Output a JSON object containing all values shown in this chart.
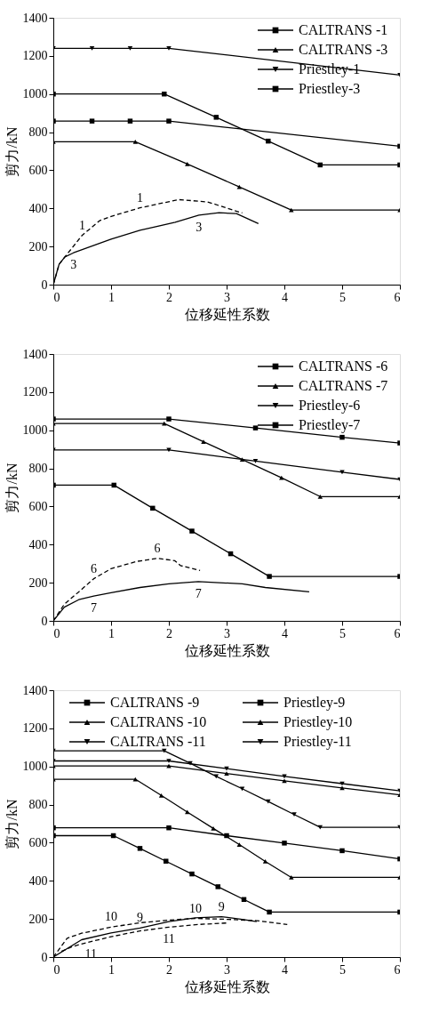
{
  "chart_data": [
    {
      "type": "line",
      "xlabel": "位移延性系数",
      "ylabel": "剪力/kN",
      "xlim": [
        0,
        6
      ],
      "xticks": [
        0,
        1,
        2,
        3,
        4,
        5,
        6
      ],
      "ylim": [
        0,
        1400
      ],
      "yticks": [
        0,
        200,
        400,
        600,
        800,
        1000,
        1200,
        1400
      ],
      "legend": "top right",
      "series": [
        {
          "name": "CALTRANS -1",
          "color": "#000000",
          "marker": "square",
          "line_style": "solid",
          "x": [
            0,
            1.92,
            2.82,
            3.72,
            4.62,
            6
          ],
          "values": [
            1000,
            1000,
            878,
            753,
            628,
            628
          ]
        },
        {
          "name": "CALTRANS -3",
          "color": "#000000",
          "marker": "triangle",
          "line_style": "solid",
          "x": [
            0,
            1.42,
            2.32,
            3.22,
            4.12,
            6
          ],
          "values": [
            750,
            750,
            633,
            513,
            391,
            391
          ]
        },
        {
          "name": "Priestley-1",
          "color": "#000000",
          "marker": "triangle-down",
          "line_style": "solid",
          "x": [
            0,
            0.67,
            1.33,
            2,
            6
          ],
          "values": [
            1240,
            1240,
            1240,
            1240,
            1100
          ]
        },
        {
          "name": "Priestley-3",
          "color": "#000000",
          "marker": "square",
          "line_style": "solid",
          "x": [
            0,
            0.67,
            1.33,
            2,
            6
          ],
          "values": [
            858,
            858,
            858,
            858,
            726
          ]
        },
        {
          "name": "1",
          "color": "#000000",
          "line_style": "dashed",
          "x": [
            0,
            0.1,
            0.2,
            0.5,
            0.8,
            1.0,
            1.5,
            2.17,
            2.67,
            3.27
          ],
          "values": [
            0,
            107,
            145,
            259,
            335,
            358,
            403,
            446,
            434,
            376
          ]
        },
        {
          "name": "3",
          "color": "#000000",
          "line_style": "solid",
          "x": [
            0,
            0.1,
            0.2,
            0.35,
            1.0,
            1.5,
            2.11,
            2.52,
            2.87,
            3.17,
            3.55
          ],
          "values": [
            0,
            107,
            145,
            167,
            239,
            285,
            327,
            365,
            377,
            373,
            320
          ]
        }
      ]
    },
    {
      "type": "line",
      "xlabel": "位移延性系数",
      "ylabel": "剪力/kN",
      "xlim": [
        0,
        6
      ],
      "xticks": [
        0,
        1,
        2,
        3,
        4,
        5,
        6
      ],
      "ylim": [
        0,
        1400
      ],
      "yticks": [
        0,
        200,
        400,
        600,
        800,
        1000,
        1200,
        1400
      ],
      "legend": "top right",
      "series": [
        {
          "name": "CALTRANS -6",
          "color": "#000000",
          "marker": "square",
          "line_style": "solid",
          "x": [
            0,
            1.05,
            1.72,
            2.4,
            3.07,
            3.74,
            6
          ],
          "values": [
            712,
            712,
            591,
            471,
            352,
            233,
            233
          ]
        },
        {
          "name": "CALTRANS -7",
          "color": "#000000",
          "marker": "triangle",
          "line_style": "solid",
          "x": [
            0,
            1.92,
            2.6,
            3.27,
            3.95,
            4.62,
            6
          ],
          "values": [
            1035,
            1035,
            940,
            846,
            751,
            652,
            652
          ]
        },
        {
          "name": "Priestley-6",
          "color": "#000000",
          "marker": "triangle-down",
          "line_style": "solid",
          "x": [
            0,
            2,
            3.5,
            5,
            6
          ],
          "values": [
            897,
            897,
            838,
            780,
            742
          ]
        },
        {
          "name": "Priestley-7",
          "color": "#000000",
          "marker": "square",
          "line_style": "solid",
          "x": [
            0,
            2,
            3.5,
            5,
            6
          ],
          "values": [
            1059,
            1059,
            1012,
            963,
            933
          ]
        },
        {
          "name": "6",
          "color": "#000000",
          "line_style": "dashed",
          "x": [
            0,
            0.19,
            0.44,
            0.7,
            1.0,
            1.45,
            1.8,
            2.1,
            2.2,
            2.54
          ],
          "values": [
            0,
            87,
            152,
            221,
            274,
            312,
            328,
            316,
            290,
            264
          ]
        },
        {
          "name": "7",
          "color": "#000000",
          "line_style": "solid",
          "x": [
            0,
            0.19,
            0.44,
            0.7,
            1.0,
            1.5,
            2.0,
            2.51,
            3.27,
            3.67,
            4.43
          ],
          "values": [
            0,
            72,
            111,
            130,
            148,
            175,
            194,
            206,
            194,
            175,
            152
          ]
        }
      ]
    },
    {
      "type": "line",
      "xlabel": "位移延性系数",
      "ylabel": "剪力/kN",
      "xlim": [
        0,
        6
      ],
      "xticks": [
        0,
        1,
        2,
        3,
        4,
        5,
        6
      ],
      "ylim": [
        0,
        1400
      ],
      "yticks": [
        0,
        200,
        400,
        600,
        800,
        1000,
        1200,
        1400
      ],
      "legend": "top left",
      "series": [
        {
          "name": "CALTRANS -9",
          "color": "#000000",
          "marker": "square",
          "line_style": "solid",
          "x": [
            0,
            1.04,
            1.5,
            1.95,
            2.4,
            2.85,
            3.3,
            3.74,
            6
          ],
          "values": [
            637,
            637,
            570,
            503,
            436,
            369,
            302,
            236,
            236
          ]
        },
        {
          "name": "Priestley-9",
          "color": "#000000",
          "marker": "square",
          "line_style": "solid",
          "x": [
            0,
            2,
            3,
            4,
            5,
            6
          ],
          "values": [
            678,
            678,
            637,
            598,
            558,
            515
          ]
        },
        {
          "name": "CALTRANS -10",
          "color": "#000000",
          "marker": "triangle",
          "line_style": "solid",
          "x": [
            0,
            1.42,
            1.87,
            2.32,
            2.77,
            3.22,
            3.67,
            4.12,
            6
          ],
          "values": [
            933,
            933,
            848,
            761,
            675,
            590,
            502,
            418,
            418
          ]
        },
        {
          "name": "Priestley-10",
          "color": "#000000",
          "marker": "triangle",
          "line_style": "solid",
          "x": [
            0,
            2,
            3,
            4,
            5,
            6
          ],
          "values": [
            1003,
            1003,
            963,
            925,
            887,
            851
          ]
        },
        {
          "name": "CALTRANS -11",
          "color": "#000000",
          "marker": "triangle-down",
          "line_style": "solid",
          "x": [
            0,
            1.92,
            2.37,
            2.82,
            3.27,
            3.72,
            4.17,
            4.62,
            6
          ],
          "values": [
            1082,
            1082,
            1017,
            948,
            883,
            816,
            748,
            681,
            681
          ]
        },
        {
          "name": "Priestley-11",
          "color": "#000000",
          "marker": "triangle-down",
          "line_style": "solid",
          "x": [
            0,
            2,
            3,
            4,
            5,
            6
          ],
          "values": [
            1029,
            1029,
            989,
            948,
            910,
            872
          ]
        },
        {
          "name": "9",
          "color": "#000000",
          "line_style": "solid",
          "x": [
            0,
            0.49,
            1.0,
            1.5,
            2.0,
            2.46,
            2.91,
            3.27,
            3.52
          ],
          "values": [
            0,
            91,
            127,
            152,
            186,
            206,
            212,
            198,
            186
          ]
        },
        {
          "name": "10",
          "color": "#000000",
          "line_style": "dashed",
          "x": [
            0,
            0.24,
            0.49,
            1.0,
            1.5,
            2.0,
            2.46,
            3.02,
            3.52,
            4.05
          ],
          "values": [
            0,
            99,
            125,
            157,
            180,
            194,
            203,
            198,
            191,
            171
          ]
        },
        {
          "name": "11",
          "color": "#000000",
          "line_style": "dashed",
          "x": [
            0.14,
            0.34,
            0.65,
            1.0,
            1.5,
            2.0,
            2.51,
            3.02
          ],
          "values": [
            30,
            56,
            81,
            107,
            137,
            157,
            171,
            179
          ]
        }
      ]
    }
  ]
}
